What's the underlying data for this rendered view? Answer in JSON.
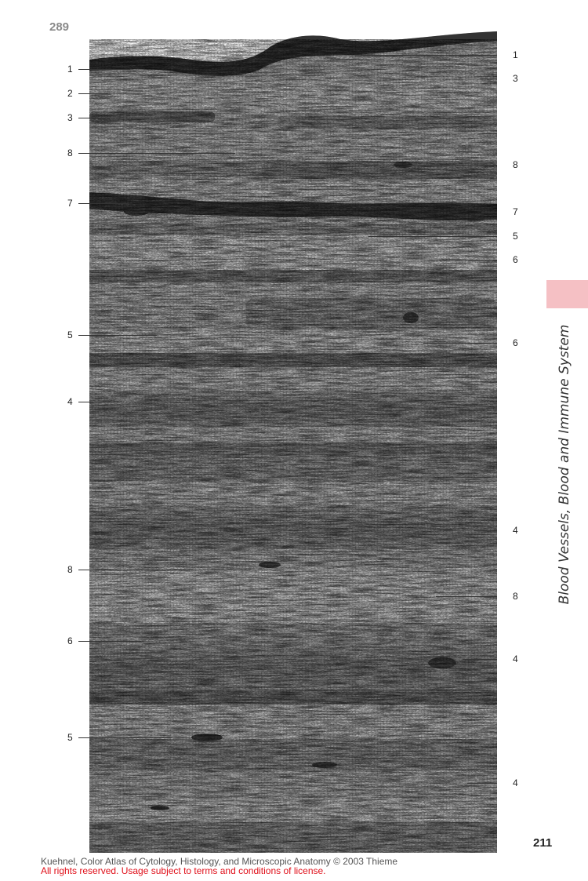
{
  "figure_number": "289",
  "page_number": "211",
  "section_title": "Blood Vessels, Blood and Immune System",
  "left_labels": [
    "1",
    "2",
    "3",
    "8",
    "7",
    "5",
    "4",
    "8",
    "6",
    "5"
  ],
  "right_labels": [
    "1",
    "3",
    "8",
    "7",
    "5",
    "6",
    "6",
    "4",
    "8",
    "4",
    "4"
  ],
  "credit_line1": "Kuehnel, Color Atlas of Cytology, Histology, and Microscopic Anatomy © 2003 Thieme",
  "credit_line2": "All rights reserved. Usage subject to terms and conditions of license.",
  "colors": {
    "tab": "#f5c0c4",
    "license_red": "#e0101a"
  }
}
